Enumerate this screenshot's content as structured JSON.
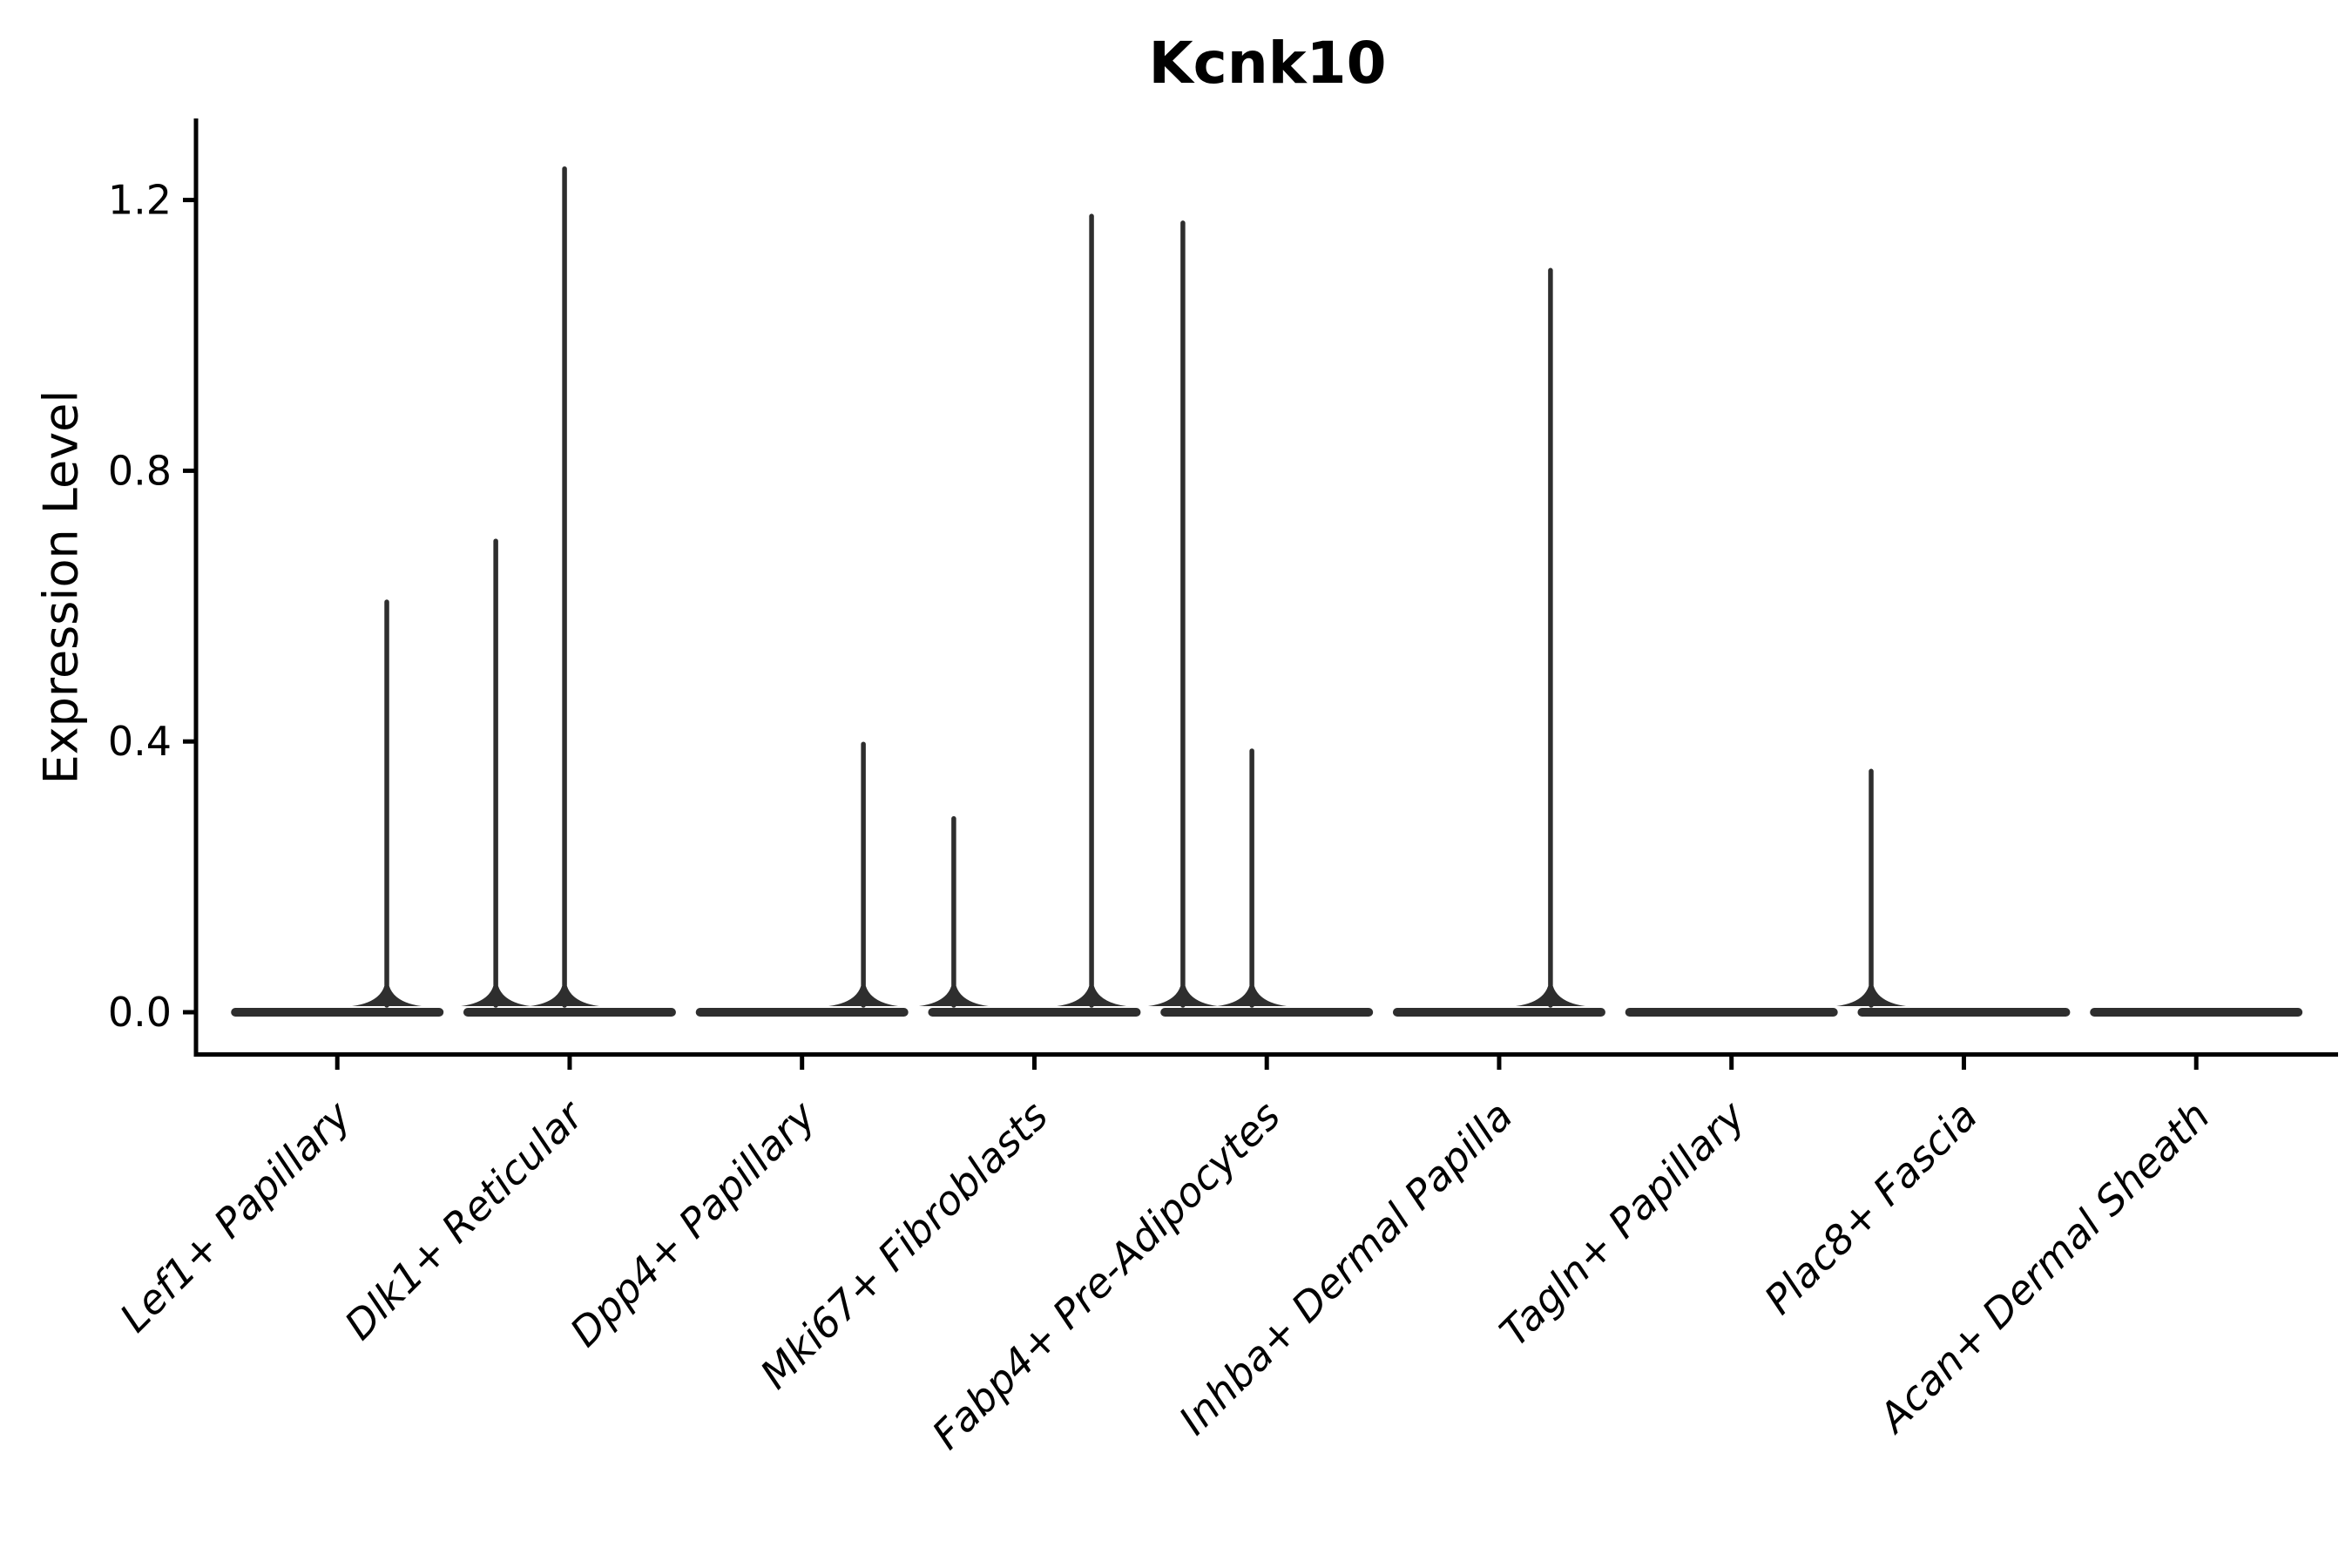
{
  "chart_data": {
    "type": "violin",
    "title": "Kcnk10",
    "ylabel": "Expression Level",
    "xlabel": "",
    "yticks": [
      0.0,
      0.4,
      0.8,
      1.2
    ],
    "ytick_labels": [
      "0.0",
      "0.4",
      "0.8",
      "1.2"
    ],
    "ylim": [
      -0.06,
      1.32
    ],
    "grid": false,
    "legend": "none",
    "categories": [
      "Lef1+ Papillary",
      "Dlk1+ Reticular",
      "Dpp4+ Papillary",
      "Mki67+ Fibroblasts",
      "Fabp4+ Pre-Adipocytes",
      "Inhba+ Dermal Papilla",
      "Tagln+ Papillary",
      "Plac8+ Fascia",
      "Acan+ Dermal Sheath"
    ],
    "violins": [
      {
        "category": "Lef1+ Papillary",
        "baseline_value": 0.0,
        "spikes": [
          {
            "offset_frac": 0.213,
            "max": 0.61
          }
        ]
      },
      {
        "category": "Dlk1+ Reticular",
        "baseline_value": 0.0,
        "spikes": [
          {
            "offset_frac": -0.318,
            "max": 0.7
          },
          {
            "offset_frac": -0.022,
            "max": 1.25
          }
        ]
      },
      {
        "category": "Dpp4+ Papillary",
        "baseline_value": 0.0,
        "spikes": [
          {
            "offset_frac": 0.264,
            "max": 0.4
          }
        ]
      },
      {
        "category": "Mki67+ Fibroblasts",
        "baseline_value": 0.0,
        "spikes": [
          {
            "offset_frac": -0.347,
            "max": 0.29
          },
          {
            "offset_frac": 0.246,
            "max": 1.18
          }
        ]
      },
      {
        "category": "Fabp4+ Pre-Adipocytes",
        "baseline_value": 0.0,
        "spikes": [
          {
            "offset_frac": -0.361,
            "max": 1.17
          },
          {
            "offset_frac": -0.064,
            "max": 0.39
          }
        ]
      },
      {
        "category": "Inhba+ Dermal Papilla",
        "baseline_value": 0.0,
        "spikes": [
          {
            "offset_frac": 0.221,
            "max": 1.1
          }
        ]
      },
      {
        "category": "Tagln+ Papillary",
        "baseline_value": 0.0,
        "spikes": []
      },
      {
        "category": "Plac8+ Fascia",
        "baseline_value": 0.0,
        "spikes": [
          {
            "offset_frac": -0.399,
            "max": 0.36
          }
        ]
      },
      {
        "category": "Acan+ Dermal Sheath",
        "baseline_value": 0.0,
        "spikes": []
      }
    ],
    "violin_width_frac": 0.915,
    "colors": {
      "line": "#2e2e2e",
      "axis": "#000000",
      "text": "#000000",
      "background": "#ffffff"
    }
  }
}
